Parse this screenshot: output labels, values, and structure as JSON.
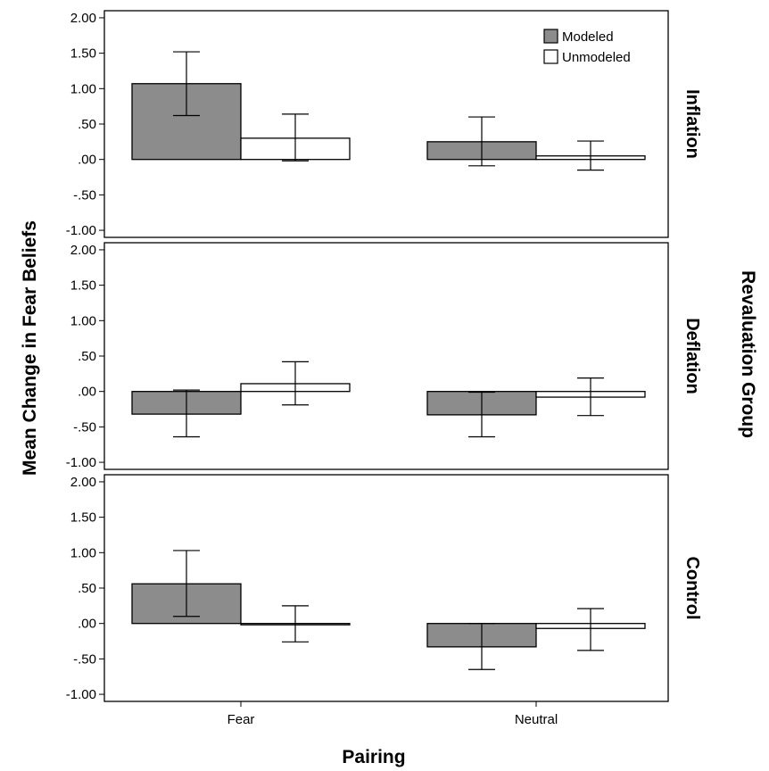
{
  "chart_data": {
    "type": "bar",
    "xlabel": "Pairing",
    "ylabel": "Mean Change in Fear Beliefs",
    "facet_title": "Revaluation Group",
    "categories": [
      "Fear",
      "Neutral"
    ],
    "ylim": [
      -1.1,
      2.1
    ],
    "yticks": [
      2.0,
      1.5,
      1.0,
      0.5,
      0.0,
      -0.5,
      -1.0
    ],
    "ytick_labels": [
      "2.00",
      "1.50",
      "1.00",
      ".50",
      ".00",
      "-.50",
      "-1.00"
    ],
    "legend": {
      "position": "top-right",
      "entries": [
        {
          "name": "Modeled",
          "color": "#8c8c8c"
        },
        {
          "name": "Unmodeled",
          "color": "#ffffff"
        }
      ]
    },
    "panels": [
      {
        "group": "Inflation",
        "series": [
          {
            "name": "Modeled",
            "values": [
              1.07,
              0.25
            ],
            "err_low": [
              0.62,
              -0.09
            ],
            "err_high": [
              1.52,
              0.6
            ]
          },
          {
            "name": "Unmodeled",
            "values": [
              0.3,
              0.05
            ],
            "err_low": [
              -0.02,
              -0.15
            ],
            "err_high": [
              0.64,
              0.26
            ]
          }
        ]
      },
      {
        "group": "Deflation",
        "series": [
          {
            "name": "Modeled",
            "values": [
              -0.32,
              -0.33
            ],
            "err_low": [
              -0.64,
              -0.64
            ],
            "err_high": [
              0.02,
              -0.01
            ]
          },
          {
            "name": "Unmodeled",
            "values": [
              0.11,
              -0.08
            ],
            "err_low": [
              -0.19,
              -0.34
            ],
            "err_high": [
              0.42,
              0.19
            ]
          }
        ]
      },
      {
        "group": "Control",
        "series": [
          {
            "name": "Modeled",
            "values": [
              0.56,
              -0.33
            ],
            "err_low": [
              0.1,
              -0.65
            ],
            "err_high": [
              1.03,
              0.0
            ]
          },
          {
            "name": "Unmodeled",
            "values": [
              -0.01,
              -0.07
            ],
            "err_low": [
              -0.26,
              -0.38
            ],
            "err_high": [
              0.25,
              0.21
            ]
          }
        ]
      }
    ]
  }
}
